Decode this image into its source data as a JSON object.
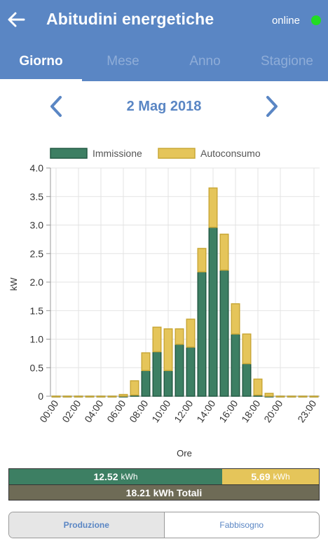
{
  "header": {
    "title": "Abitudini energetiche",
    "status": "online",
    "status_color": "#22dd22",
    "back_icon": "arrow-left-icon"
  },
  "tabs": [
    {
      "label": "Giorno",
      "active": true
    },
    {
      "label": "Mese",
      "active": false
    },
    {
      "label": "Anno",
      "active": false
    },
    {
      "label": "Stagione",
      "active": false
    }
  ],
  "date_nav": {
    "date": "2 Mag 2018",
    "prev_icon": "chevron-left-icon",
    "next_icon": "chevron-right-icon"
  },
  "chart_data": {
    "type": "bar",
    "stacked": true,
    "xlabel": "Ore",
    "ylabel": "kW",
    "ylim": [
      0,
      4.0
    ],
    "yticks": [
      "0",
      "0.5",
      "1.0",
      "1.5",
      "2.0",
      "2.5",
      "3.0",
      "3.5",
      "4.0"
    ],
    "xtick_labels": [
      "00:00",
      "02:00",
      "04:00",
      "06:00",
      "08:00",
      "10:00",
      "12:00",
      "14:00",
      "16:00",
      "18:00",
      "20:00",
      "23:00"
    ],
    "grid": true,
    "legend_position": "top",
    "categories": [
      "00:00",
      "01:00",
      "02:00",
      "03:00",
      "04:00",
      "05:00",
      "06:00",
      "07:00",
      "08:00",
      "09:00",
      "10:00",
      "11:00",
      "12:00",
      "13:00",
      "14:00",
      "15:00",
      "16:00",
      "17:00",
      "18:00",
      "19:00",
      "20:00",
      "21:00",
      "22:00",
      "23:00"
    ],
    "series": [
      {
        "name": "Immissione",
        "color": "#3d7f63",
        "values": [
          0,
          0,
          0,
          0,
          0,
          0,
          0,
          0.02,
          0.45,
          0.78,
          0.45,
          0.91,
          0.86,
          2.18,
          2.96,
          2.21,
          1.09,
          0.57,
          0.02,
          0,
          0,
          0,
          0,
          0
        ]
      },
      {
        "name": "Autoconsumo",
        "color": "#e5c55a",
        "values": [
          0,
          0,
          0,
          0,
          0,
          0,
          0.03,
          0.25,
          0.31,
          0.43,
          0.73,
          0.27,
          0.49,
          0.41,
          0.69,
          0.63,
          0.53,
          0.52,
          0.28,
          0.05,
          0,
          0,
          0,
          0
        ]
      }
    ]
  },
  "summary": {
    "immissione_value": "12.52",
    "autoconsumo_value": "5.69",
    "unit": "kWh",
    "immissione_fraction": 0.6875,
    "total_label": "18.21 kWh Totali"
  },
  "toggle": {
    "produzione": "Produzione",
    "fabbisogno": "Fabbisogno"
  }
}
